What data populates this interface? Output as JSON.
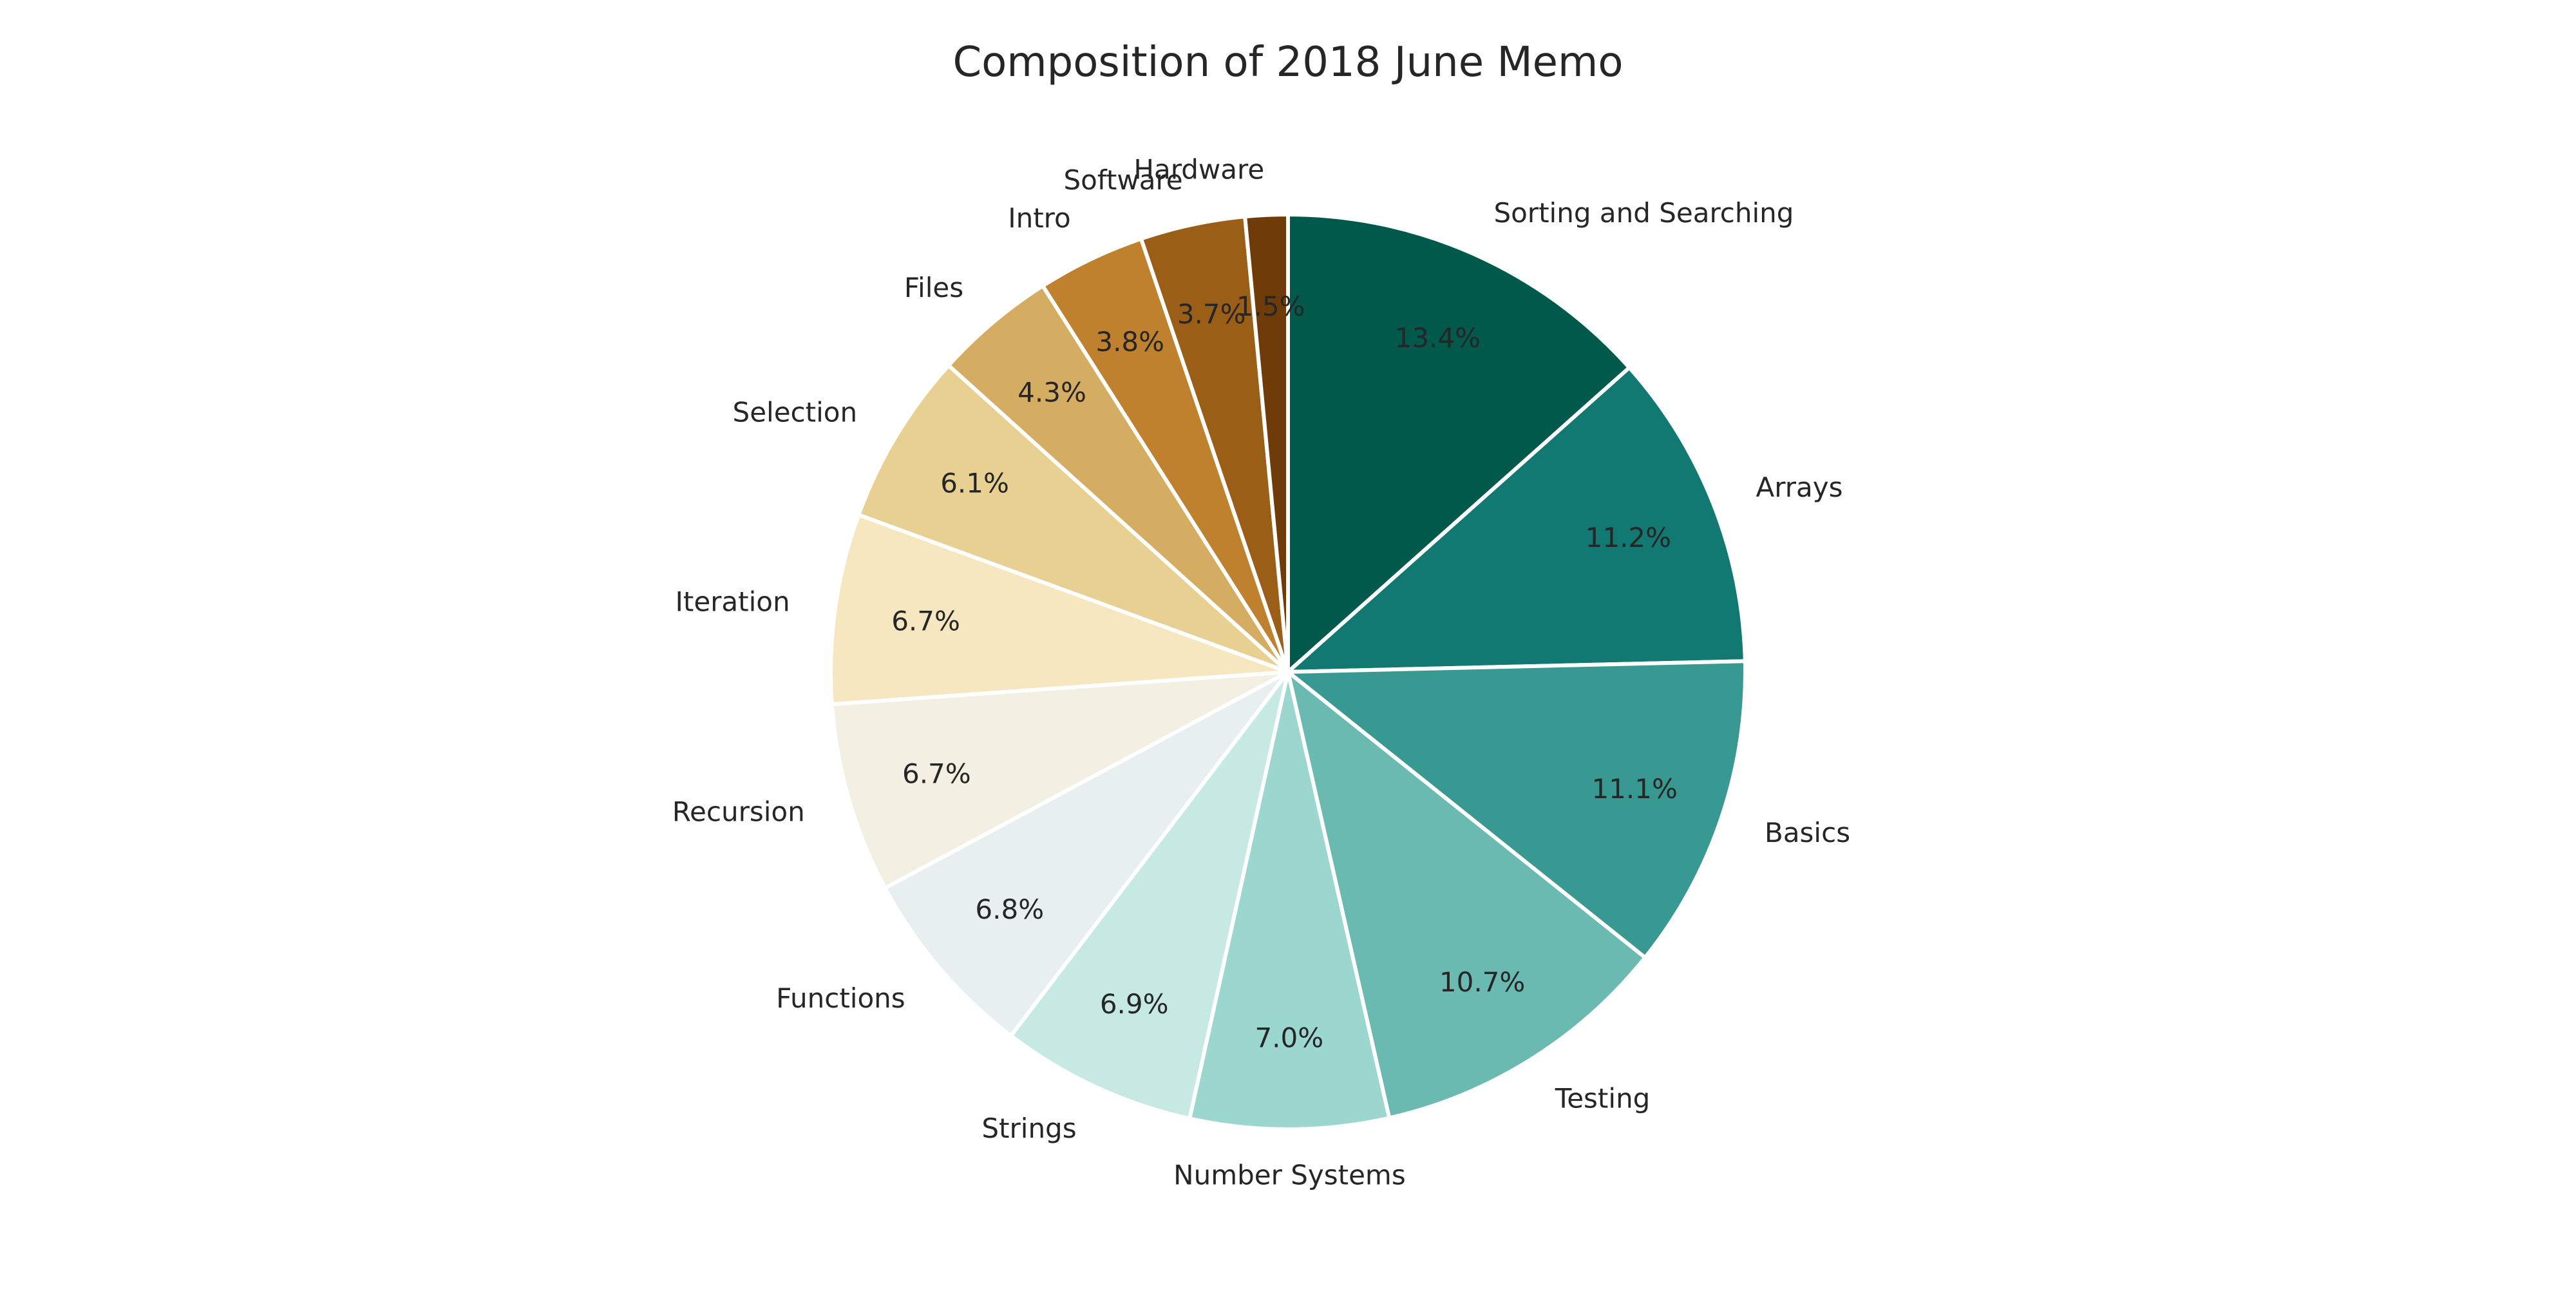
{
  "chart_data": {
    "type": "pie",
    "title": "Composition of 2018 June Memo",
    "start_angle_deg": 90,
    "direction": "clockwise",
    "legend": "none",
    "slices": [
      {
        "label": "Sorting and Searching",
        "value": 13.4,
        "pct_label": "13.4%",
        "color": "#01594c"
      },
      {
        "label": "Arrays",
        "value": 11.2,
        "pct_label": "11.2%",
        "color": "#127872"
      },
      {
        "label": "Basics",
        "value": 11.1,
        "pct_label": "11.1%",
        "color": "#389892"
      },
      {
        "label": "Testing",
        "value": 10.7,
        "pct_label": "10.7%",
        "color": "#6abab1"
      },
      {
        "label": "Number Systems",
        "value": 7.0,
        "pct_label": "7.0%",
        "color": "#9bd7ce"
      },
      {
        "label": "Strings",
        "value": 6.9,
        "pct_label": "6.9%",
        "color": "#c7e9e3"
      },
      {
        "label": "Functions",
        "value": 6.8,
        "pct_label": "6.8%",
        "color": "#e7f0ee"
      },
      {
        "label": "Recursion",
        "value": 6.7,
        "pct_label": "6.7%",
        "color": "#f3efe3"
      },
      {
        "label": "Iteration",
        "value": 6.7,
        "pct_label": "6.7%",
        "color": "#f6e7c1"
      },
      {
        "label": "Selection",
        "value": 6.1,
        "pct_label": "6.1%",
        "color": "#e8d093"
      },
      {
        "label": "Files",
        "value": 4.3,
        "pct_label": "4.3%",
        "color": "#d5ad62"
      },
      {
        "label": "Intro",
        "value": 3.8,
        "pct_label": "3.8%",
        "color": "#bf812d"
      },
      {
        "label": "Software",
        "value": 3.7,
        "pct_label": "3.7%",
        "color": "#9a5e17"
      },
      {
        "label": "Hardware",
        "value": 1.5,
        "pct_label": "1.5%",
        "color": "#6f3c09"
      }
    ]
  }
}
